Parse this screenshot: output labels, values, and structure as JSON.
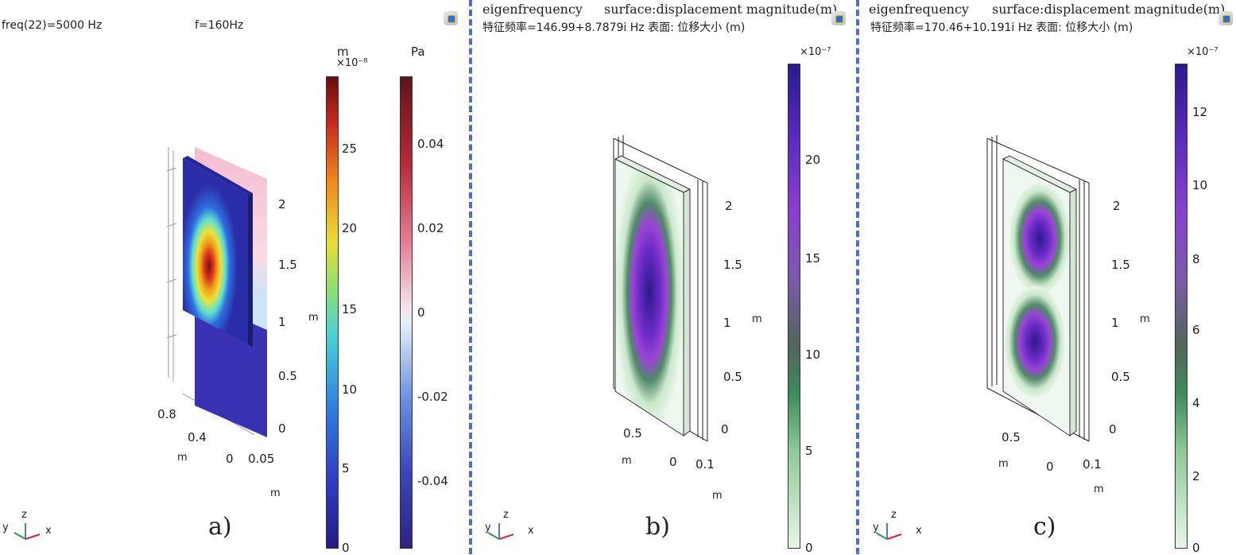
{
  "panel_a": {
    "freq_label": "freq(22)=5000 Hz",
    "f_label": "f=160Hz",
    "caption": "a)",
    "colorbar_disp": {
      "unit": "m",
      "exponent": "×10⁻⁸",
      "ticks": [
        "25",
        "20",
        "15",
        "10",
        "5",
        "0"
      ]
    },
    "colorbar_pressure": {
      "unit": "Pa",
      "ticks": [
        "0.04",
        "0.02",
        "0",
        "-0.02",
        "-0.04"
      ]
    },
    "axis": {
      "z_ticks": [
        "2",
        "1.5",
        "1",
        "0.5",
        "0"
      ],
      "z_unit": "m",
      "y_ticks": [
        "0.8",
        "0.4",
        "0"
      ],
      "y_unit": "m",
      "x_ticks": [
        "0.05"
      ],
      "x_unit": "m"
    }
  },
  "panel_b": {
    "title": "eigenfrequency",
    "subtitle": "surface:displacement magnitude(m)",
    "info": "特征频率=146.99+8.7879i Hz 表面: 位移大小 (m)",
    "caption": "b)",
    "colorbar": {
      "exponent": "×10⁻⁷",
      "ticks": [
        "20",
        "15",
        "10",
        "5",
        "0"
      ]
    },
    "axis": {
      "z_ticks": [
        "2",
        "1.5",
        "1",
        "0.5",
        "0"
      ],
      "z_unit": "m",
      "y_ticks": [
        "0.5",
        "0"
      ],
      "y_unit": "m",
      "x_ticks": [
        "0.1"
      ],
      "x_unit": "m"
    }
  },
  "panel_c": {
    "title": "eigenfrequency",
    "subtitle": "surface:displacement magnitude(m)",
    "info": "特征频率=170.46+10.191i Hz 表面: 位移大小 (m)",
    "caption": "c)",
    "colorbar": {
      "exponent": "×10⁻⁷",
      "ticks": [
        "12",
        "10",
        "8",
        "6",
        "4",
        "2",
        "0"
      ]
    },
    "axis": {
      "z_ticks": [
        "2",
        "1.5",
        "1",
        "0.5",
        "0"
      ],
      "z_unit": "m",
      "y_ticks": [
        "0.5",
        "0"
      ],
      "y_unit": "m",
      "x_ticks": [
        "0.1"
      ],
      "x_unit": "m"
    }
  },
  "triad": {
    "y": "y",
    "z": "z",
    "x": "x"
  },
  "colors": {
    "divider": "#4e6fc7",
    "jet_high": "#7a1010",
    "jet_low": "#2a1f8a",
    "purple_high": "#2a1a8c",
    "green_low": "#eaf7ea"
  }
}
